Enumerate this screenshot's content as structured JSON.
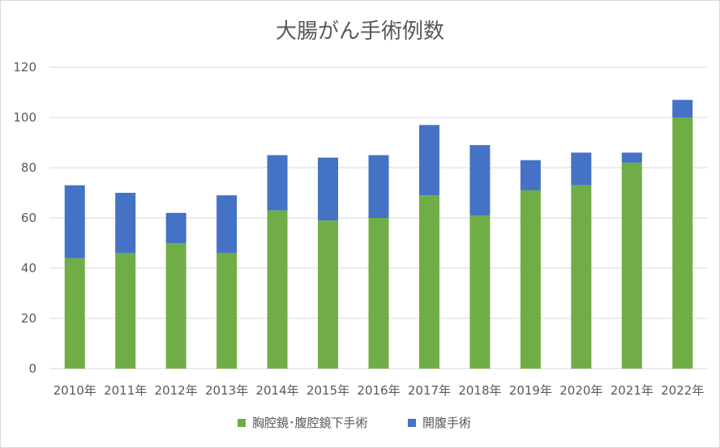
{
  "chart_data": {
    "type": "bar",
    "stacked": true,
    "title": "大腸がん手術例数",
    "categories": [
      "2010年",
      "2011年",
      "2012年",
      "2013年",
      "2014年",
      "2015年",
      "2016年",
      "2017年",
      "2018年",
      "2019年",
      "2020年",
      "2021年",
      "2022年"
    ],
    "series": [
      {
        "name": "胸腔鏡･腹腔鏡下手術",
        "color": "#70ad47",
        "values": [
          44,
          46,
          50,
          46,
          63,
          59,
          60,
          69,
          61,
          71,
          73,
          82,
          100
        ]
      },
      {
        "name": "開腹手術",
        "color": "#4472c4",
        "values": [
          29,
          24,
          12,
          23,
          22,
          25,
          25,
          28,
          28,
          12,
          13,
          4,
          7
        ]
      }
    ],
    "ylim": [
      0,
      120
    ],
    "yticks": [
      0,
      20,
      40,
      60,
      80,
      100,
      120
    ],
    "grid": true,
    "legend": "bottom"
  }
}
